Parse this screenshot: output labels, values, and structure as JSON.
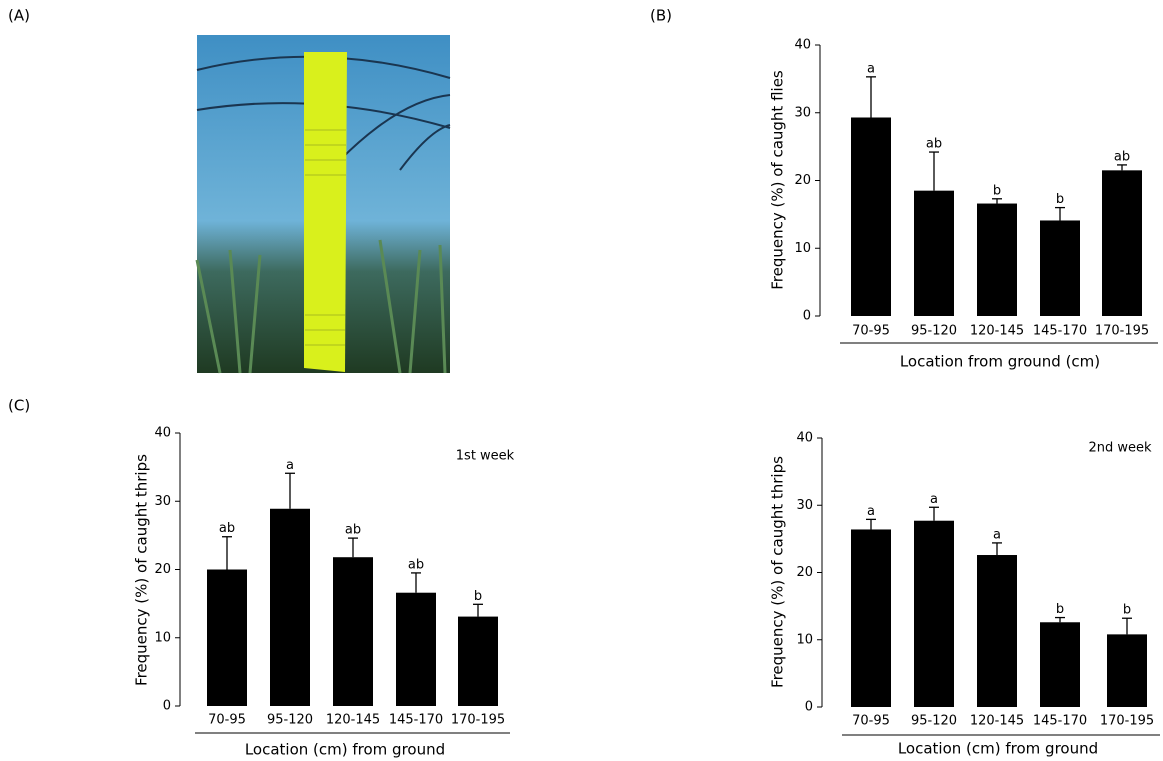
{
  "panel_labels": [
    "(A)",
    "(B)",
    "(C)"
  ],
  "chart_data": [
    {
      "type": "bar",
      "xlabel": "Location from ground (cm)",
      "ylabel": "Frequency (%) of caught flies",
      "categories": [
        "70-95",
        "95-120",
        "120-145",
        "145-170",
        "170-195"
      ],
      "values": [
        29.3,
        18.5,
        16.6,
        14.1,
        21.5
      ],
      "errors": [
        6,
        5.7,
        0.7,
        1.9,
        0.8
      ],
      "letters": [
        "a",
        "ab",
        "b",
        "b",
        "ab"
      ],
      "color": "#000000",
      "ylim": [
        0,
        40
      ],
      "yticks": [
        0,
        10,
        20,
        30,
        40
      ]
    },
    {
      "type": "bar",
      "annotation": "1st week",
      "xlabel": "Location (cm) from ground",
      "ylabel": "Frequency (%) of caught thrips",
      "categories": [
        "70-95",
        "95-120",
        "120-145",
        "145-170",
        "170-195"
      ],
      "values": [
        20,
        28.9,
        21.8,
        16.6,
        13.1
      ],
      "errors": [
        4.8,
        5.2,
        2.8,
        2.9,
        1.8
      ],
      "letters": [
        "ab",
        "a",
        "ab",
        "ab",
        "b"
      ],
      "color": "#000000",
      "ylim": [
        0,
        40
      ],
      "yticks": [
        0,
        10,
        20,
        30,
        40
      ]
    },
    {
      "type": "bar",
      "annotation": "2nd week",
      "xlabel": "Location (cm) from ground",
      "ylabel": "Frequency (%) of caught thrips",
      "categories": [
        "70-95",
        "95-120",
        "120-145",
        "145-170",
        "170-195"
      ],
      "values": [
        26.4,
        27.7,
        22.6,
        12.6,
        10.8
      ],
      "errors": [
        1.5,
        2.0,
        1.8,
        0.7,
        2.4
      ],
      "letters": [
        "a",
        "a",
        "a",
        "b",
        "b"
      ],
      "color": "#000000",
      "ylim": [
        0,
        40
      ],
      "yticks": [
        0,
        10,
        20,
        30,
        40
      ]
    }
  ]
}
